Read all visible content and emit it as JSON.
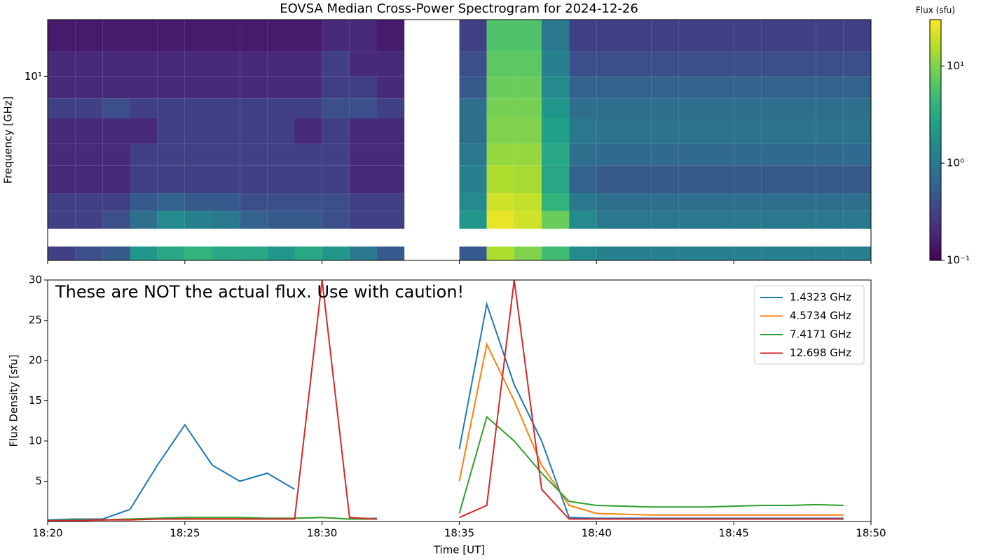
{
  "chart_data": [
    {
      "type": "heatmap",
      "title": "EOVSA Median Cross-Power Spectrogram for 2024-12-26",
      "ylabel": "Frequency [GHz]",
      "ylog": true,
      "ylim": [
        1.5,
        18
      ],
      "yticks": [
        {
          "value": 10,
          "label": "10¹"
        }
      ],
      "xlim": [
        "18:20",
        "18:50"
      ],
      "x": [
        "18:20",
        "18:21",
        "18:22",
        "18:23",
        "18:24",
        "18:25",
        "18:26",
        "18:27",
        "18:28",
        "18:29",
        "18:30",
        "18:31",
        "18:32",
        "18:33",
        "18:34",
        "18:35",
        "18:36",
        "18:37",
        "18:38",
        "18:39",
        "18:40",
        "18:41",
        "18:42",
        "18:43",
        "18:44",
        "18:45",
        "18:46",
        "18:47",
        "18:48",
        "18:49"
      ],
      "freq_bins": [
        [
          1.5,
          1.73
        ],
        [
          2.08,
          2.5
        ],
        [
          2.5,
          3
        ],
        [
          3,
          4
        ],
        [
          4,
          5
        ],
        [
          5,
          6.5
        ],
        [
          6.5,
          8
        ],
        [
          8,
          10
        ],
        [
          10,
          13
        ],
        [
          13,
          18
        ]
      ],
      "z": [
        [
          0.3,
          0.4,
          0.5,
          2,
          3,
          4,
          3,
          3,
          2,
          3,
          2,
          1,
          0.5,
          null,
          null,
          0.5,
          15,
          10,
          5,
          1.5,
          1.2,
          1.2,
          1.2,
          1.2,
          1.2,
          1.2,
          1.2,
          1.2,
          1.2,
          1.2
        ],
        [
          0.3,
          0.3,
          0.4,
          0.8,
          1.5,
          1.2,
          1,
          0.6,
          0.5,
          0.5,
          0.4,
          0.3,
          0.3,
          null,
          null,
          2,
          25,
          20,
          8,
          1.5,
          1,
          1,
          1,
          1,
          1,
          1,
          1,
          1,
          1,
          1
        ],
        [
          0.3,
          0.3,
          0.3,
          0.5,
          0.6,
          0.5,
          0.5,
          0.4,
          0.4,
          0.4,
          0.4,
          0.3,
          0.3,
          null,
          null,
          1.5,
          20,
          18,
          4,
          1,
          0.8,
          0.8,
          0.8,
          0.8,
          0.8,
          0.8,
          0.8,
          0.8,
          0.8,
          0.8
        ],
        [
          0.2,
          0.2,
          0.2,
          0.3,
          0.3,
          0.3,
          0.3,
          0.3,
          0.3,
          0.3,
          0.3,
          0.2,
          0.2,
          null,
          null,
          1.2,
          15,
          14,
          3,
          0.6,
          0.5,
          0.5,
          0.5,
          0.5,
          0.5,
          0.5,
          0.5,
          0.5,
          0.5,
          0.5
        ],
        [
          0.2,
          0.2,
          0.2,
          0.3,
          0.3,
          0.3,
          0.3,
          0.3,
          0.3,
          0.3,
          0.3,
          0.2,
          0.2,
          null,
          null,
          1,
          12,
          12,
          3,
          0.8,
          0.7,
          0.7,
          0.7,
          0.7,
          0.7,
          0.7,
          0.7,
          0.7,
          0.7,
          0.7
        ],
        [
          0.2,
          0.2,
          0.2,
          0.2,
          0.3,
          0.3,
          0.3,
          0.3,
          0.3,
          0.2,
          0.3,
          0.2,
          0.2,
          null,
          null,
          0.8,
          10,
          10,
          2.5,
          1,
          0.9,
          0.9,
          0.9,
          0.9,
          0.9,
          0.9,
          0.9,
          0.9,
          0.9,
          0.9
        ],
        [
          0.3,
          0.3,
          0.4,
          0.3,
          0.3,
          0.3,
          0.3,
          0.3,
          0.3,
          0.3,
          0.4,
          0.4,
          0.3,
          null,
          null,
          0.8,
          9,
          9,
          2,
          0.8,
          0.8,
          0.8,
          0.8,
          0.8,
          0.8,
          0.8,
          0.8,
          0.8,
          0.8,
          0.8
        ],
        [
          0.2,
          0.2,
          0.2,
          0.2,
          0.2,
          0.2,
          0.2,
          0.2,
          0.2,
          0.2,
          0.3,
          0.3,
          0.2,
          null,
          null,
          0.5,
          8,
          8,
          1.5,
          0.6,
          0.6,
          0.6,
          0.6,
          0.6,
          0.6,
          0.6,
          0.6,
          0.6,
          0.6,
          0.6
        ],
        [
          0.2,
          0.2,
          0.2,
          0.2,
          0.2,
          0.2,
          0.2,
          0.2,
          0.2,
          0.2,
          0.3,
          0.2,
          0.2,
          null,
          null,
          0.4,
          7,
          7,
          1.2,
          0.4,
          0.4,
          0.4,
          0.4,
          0.4,
          0.4,
          0.4,
          0.4,
          0.4,
          0.4,
          0.4
        ],
        [
          0.15,
          0.15,
          0.15,
          0.15,
          0.15,
          0.15,
          0.15,
          0.15,
          0.15,
          0.15,
          0.2,
          0.2,
          0.15,
          null,
          null,
          0.3,
          6,
          6,
          1,
          0.3,
          0.3,
          0.3,
          0.3,
          0.3,
          0.3,
          0.3,
          0.3,
          0.3,
          0.3,
          0.3
        ]
      ],
      "colormap": "viridis",
      "colorbar": {
        "label": "Flux (sfu)",
        "lim": [
          0.1,
          30
        ],
        "ticks": [
          {
            "value": 0.1,
            "label": "10⁻¹"
          },
          {
            "value": 1,
            "label": "10⁰"
          },
          {
            "value": 10,
            "label": "10¹"
          }
        ]
      }
    },
    {
      "type": "line",
      "xlabel": "Time [UT]",
      "ylabel": "Flux Density [sfu]",
      "annotation": "These are NOT the actual flux. Use with caution!",
      "xlim": [
        "18:20",
        "18:50"
      ],
      "xticks": [
        "18:20",
        "18:25",
        "18:30",
        "18:35",
        "18:40",
        "18:45",
        "18:50"
      ],
      "ylim": [
        0,
        30
      ],
      "yticks": [
        5,
        10,
        15,
        20,
        25,
        30
      ],
      "legend": "upper right",
      "x": [
        "18:20",
        "18:21",
        "18:22",
        "18:23",
        "18:24",
        "18:25",
        "18:26",
        "18:27",
        "18:28",
        "18:29",
        "18:30",
        "18:31",
        "18:32",
        "18:33",
        "18:34",
        "18:35",
        "18:36",
        "18:37",
        "18:38",
        "18:39",
        "18:40",
        "18:41",
        "18:42",
        "18:43",
        "18:44",
        "18:45",
        "18:46",
        "18:47",
        "18:48",
        "18:49"
      ],
      "series": [
        {
          "name": "1.4323 GHz",
          "color": "#1f77b4",
          "values": [
            0.2,
            0.3,
            0.3,
            1.5,
            7,
            12,
            7,
            5,
            6,
            4,
            null,
            0.3,
            0.4,
            null,
            null,
            9,
            27,
            17,
            10,
            0.5,
            0.4,
            0.4,
            0.4,
            0.4,
            0.4,
            0.4,
            0.4,
            0.4,
            0.4,
            0.4
          ]
        },
        {
          "name": "4.5734 GHz",
          "color": "#ff7f0e",
          "values": [
            0.1,
            0.2,
            0.2,
            0.3,
            0.4,
            0.4,
            0.4,
            0.4,
            0.4,
            0.4,
            0.5,
            0.3,
            0.3,
            null,
            null,
            5,
            22,
            15,
            7,
            2,
            1,
            0.9,
            0.8,
            0.8,
            0.8,
            0.8,
            0.8,
            0.8,
            0.8,
            0.8
          ]
        },
        {
          "name": "7.4171 GHz",
          "color": "#2ca02c",
          "values": [
            0.1,
            0.2,
            0.2,
            0.3,
            0.4,
            0.5,
            0.5,
            0.5,
            0.4,
            0.4,
            0.5,
            0.3,
            0.3,
            null,
            null,
            1,
            13,
            10,
            6,
            2.5,
            2,
            1.9,
            1.8,
            1.8,
            1.8,
            1.9,
            2,
            2,
            2.1,
            2
          ]
        },
        {
          "name": "12.698 GHz",
          "color": "#d62728",
          "values": [
            0.1,
            0.1,
            0.2,
            0.2,
            0.3,
            0.3,
            0.3,
            0.3,
            0.3,
            0.3,
            30,
            0.5,
            0.3,
            null,
            null,
            0.5,
            2,
            30,
            4,
            0.3,
            0.3,
            0.3,
            0.3,
            0.3,
            0.3,
            0.3,
            0.3,
            0.3,
            0.3,
            0.3
          ]
        }
      ]
    }
  ]
}
